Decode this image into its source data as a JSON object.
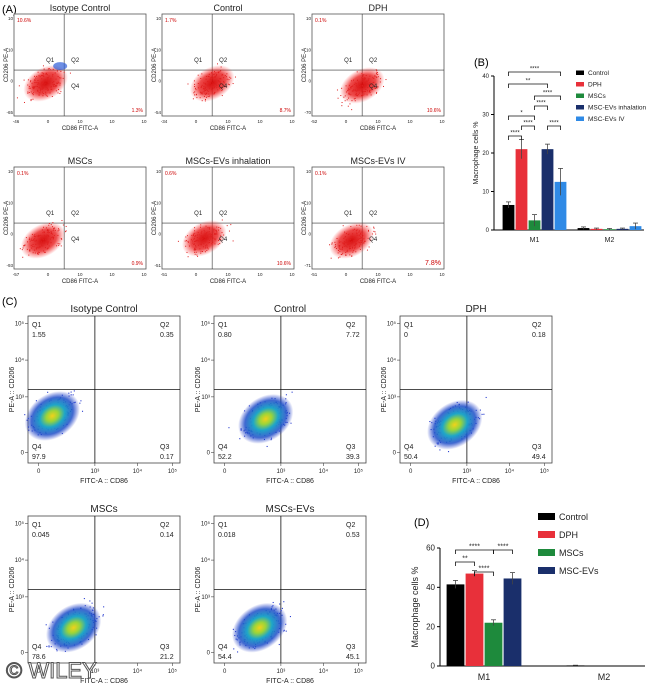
{
  "panels": {
    "A": "(A)",
    "B": "(B)",
    "C": "(C)",
    "D": "(D)"
  },
  "watermark": "© WILEY",
  "flow_a": {
    "xlabel": "CD86 FITC-A",
    "ylabel": "CD206 PE-A",
    "q_labels": [
      "Q1",
      "Q2",
      "Q4"
    ],
    "plots": [
      {
        "title": "Isotype Control",
        "q1": "10.6%",
        "q4": "1.3%",
        "x_ticks": [
          "-46",
          "0",
          "10",
          "10",
          "10"
        ],
        "y_ticks": [
          "10",
          "10",
          "0",
          "-65"
        ]
      },
      {
        "title": "Control",
        "q1": "1.7%",
        "q4": "8.7%",
        "x_ticks": [
          "-34",
          "0",
          "10",
          "10",
          "10"
        ],
        "y_ticks": [
          "10",
          "10",
          "0",
          "-54"
        ]
      },
      {
        "title": "DPH",
        "q1": "0.1%",
        "q4": "10.6%",
        "x_ticks": [
          "-52",
          "0",
          "10",
          "10",
          "10"
        ],
        "y_ticks": [
          "10",
          "10",
          "0",
          "-70"
        ]
      },
      {
        "title": "MSCs",
        "q1": "0.1%",
        "q4": "0.9%",
        "x_ticks": [
          "-57",
          "0",
          "10",
          "10",
          "10"
        ],
        "y_ticks": [
          "10",
          "10",
          "0",
          "-93"
        ]
      },
      {
        "title": "MSCs-EVs inhalation",
        "q1": "0.6%",
        "q4": "10.6%",
        "x_ticks": [
          "-51",
          "0",
          "10",
          "10",
          "10"
        ],
        "y_ticks": [
          "10",
          "10",
          "0",
          "-51"
        ]
      },
      {
        "title": "MSCs-EVs IV",
        "q1": "0.1%",
        "q4": "7.8%",
        "x_ticks": [
          "-51",
          "0",
          "10",
          "10",
          "10"
        ],
        "y_ticks": [
          "10",
          "10",
          "0",
          "-71"
        ]
      }
    ]
  },
  "flow_c": {
    "xlabel": "FITC-A :: CD86",
    "ylabel": "PE-A :: CD206",
    "x_ticks": [
      "0",
      "10³",
      "10⁴",
      "10⁵"
    ],
    "y_ticks": [
      "10⁵",
      "10⁴",
      "10³",
      "0"
    ],
    "plots": [
      {
        "title": "Isotype Control",
        "q1": "1.55",
        "q2": "0.35",
        "q3": "0.17",
        "q4": "97.9"
      },
      {
        "title": "Control",
        "q1": "0.80",
        "q2": "7.72",
        "q3": "39.3",
        "q4": "52.2"
      },
      {
        "title": "DPH",
        "q1": "0",
        "q2": "0.18",
        "q3": "49.4",
        "q4": "50.4"
      },
      {
        "title": "MSCs",
        "q1": "0.045",
        "q2": "0.14",
        "q3": "21.2",
        "q4": "78.6"
      },
      {
        "title": "MSCs-EVs",
        "q1": "0.018",
        "q2": "0.53",
        "q3": "45.1",
        "q4": "54.4"
      }
    ],
    "q_names": [
      "Q1",
      "Q2",
      "Q3",
      "Q4"
    ]
  },
  "chart_data": [
    {
      "type": "bar",
      "panel": "B",
      "ylabel": "Macrophage cells %",
      "categories": [
        "M1",
        "M2"
      ],
      "ylim": [
        0,
        40
      ],
      "yticks": [
        0,
        10,
        20,
        30,
        40
      ],
      "series": [
        {
          "name": "Control",
          "color": "#000000",
          "values": [
            6.5,
            0.5
          ],
          "errors": [
            0.8,
            0.3
          ]
        },
        {
          "name": "DPH",
          "color": "#e8303a",
          "values": [
            21,
            0.3
          ],
          "errors": [
            2.5,
            0.2
          ]
        },
        {
          "name": "MSCs",
          "color": "#1e8a3c",
          "values": [
            2.5,
            0.2
          ],
          "errors": [
            1.5,
            0.2
          ]
        },
        {
          "name": "MSC-EVs inhalation",
          "color": "#1a2f6b",
          "values": [
            21,
            0.3
          ],
          "errors": [
            1.3,
            0.2
          ]
        },
        {
          "name": "MSC-EVs IV",
          "color": "#2f8ae6",
          "values": [
            12.5,
            1.0
          ],
          "errors": [
            3.5,
            0.8
          ]
        }
      ],
      "significance": [
        "****",
        "**",
        "****",
        "****",
        "*",
        "****",
        "****",
        "****"
      ]
    },
    {
      "type": "bar",
      "panel": "D",
      "ylabel": "Macrophage cells %",
      "categories": [
        "M1",
        "M2"
      ],
      "ylim": [
        0,
        60
      ],
      "yticks": [
        0,
        20,
        40,
        60
      ],
      "series": [
        {
          "name": "Control",
          "color": "#000000",
          "values": [
            41.5,
            0.3
          ],
          "errors": [
            2,
            0.1
          ]
        },
        {
          "name": "DPH",
          "color": "#e8303a",
          "values": [
            47,
            0
          ],
          "errors": [
            1.5,
            0
          ]
        },
        {
          "name": "MSCs",
          "color": "#1e8a3c",
          "values": [
            22,
            0
          ],
          "errors": [
            1.5,
            0
          ]
        },
        {
          "name": "MSC-EVs",
          "color": "#1a2f6b",
          "values": [
            44.5,
            0
          ],
          "errors": [
            3,
            0
          ]
        }
      ],
      "significance": [
        "****",
        "****",
        "**",
        "****"
      ]
    }
  ]
}
